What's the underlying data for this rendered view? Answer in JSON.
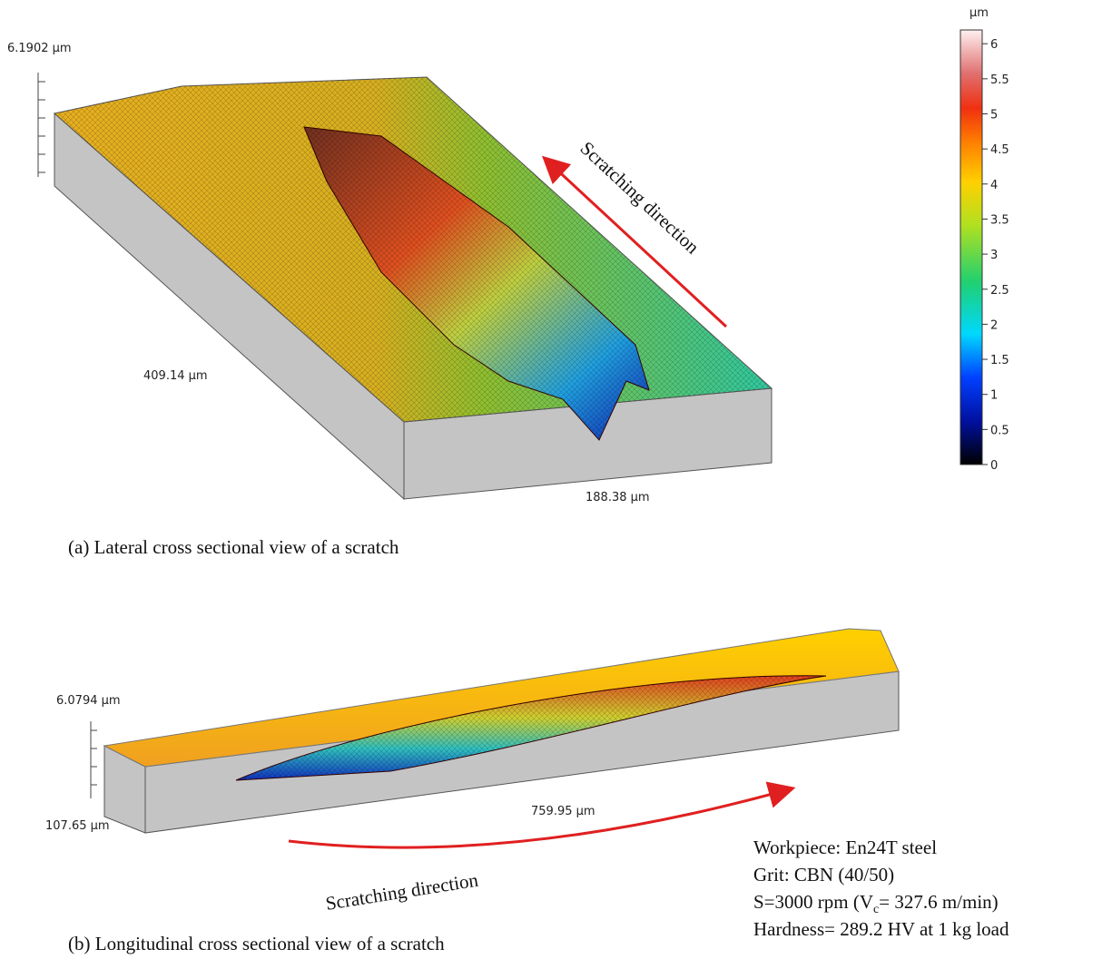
{
  "panel_a": {
    "z_max_label": "6.1902 µm",
    "length_label": "409.14 µm",
    "width_label": "188.38 µm",
    "arrow_label": "Scratching direction",
    "caption": "(a)  Lateral cross sectional view of a scratch"
  },
  "colorbar": {
    "unit": "µm",
    "ticks": [
      6,
      5.5,
      5,
      4.5,
      4,
      3.5,
      3,
      2.5,
      2,
      1.5,
      1,
      0.5,
      0
    ]
  },
  "panel_b": {
    "z_max_label": "6.0794 µm",
    "width_label": "107.65 µm",
    "length_label": "759.95 µm",
    "arrow_label": "Scratching direction",
    "caption": "(b) Longitudinal cross sectional view of  a scratch"
  },
  "conditions": [
    "Workpiece: En24T steel",
    "Grit: CBN (40/50)",
    {
      "before": "S=3000 rpm (V",
      "sub": "c",
      "after": "= 327.6 m/min)"
    },
    "Hardness= 289.2 HV at 1 kg load"
  ]
}
